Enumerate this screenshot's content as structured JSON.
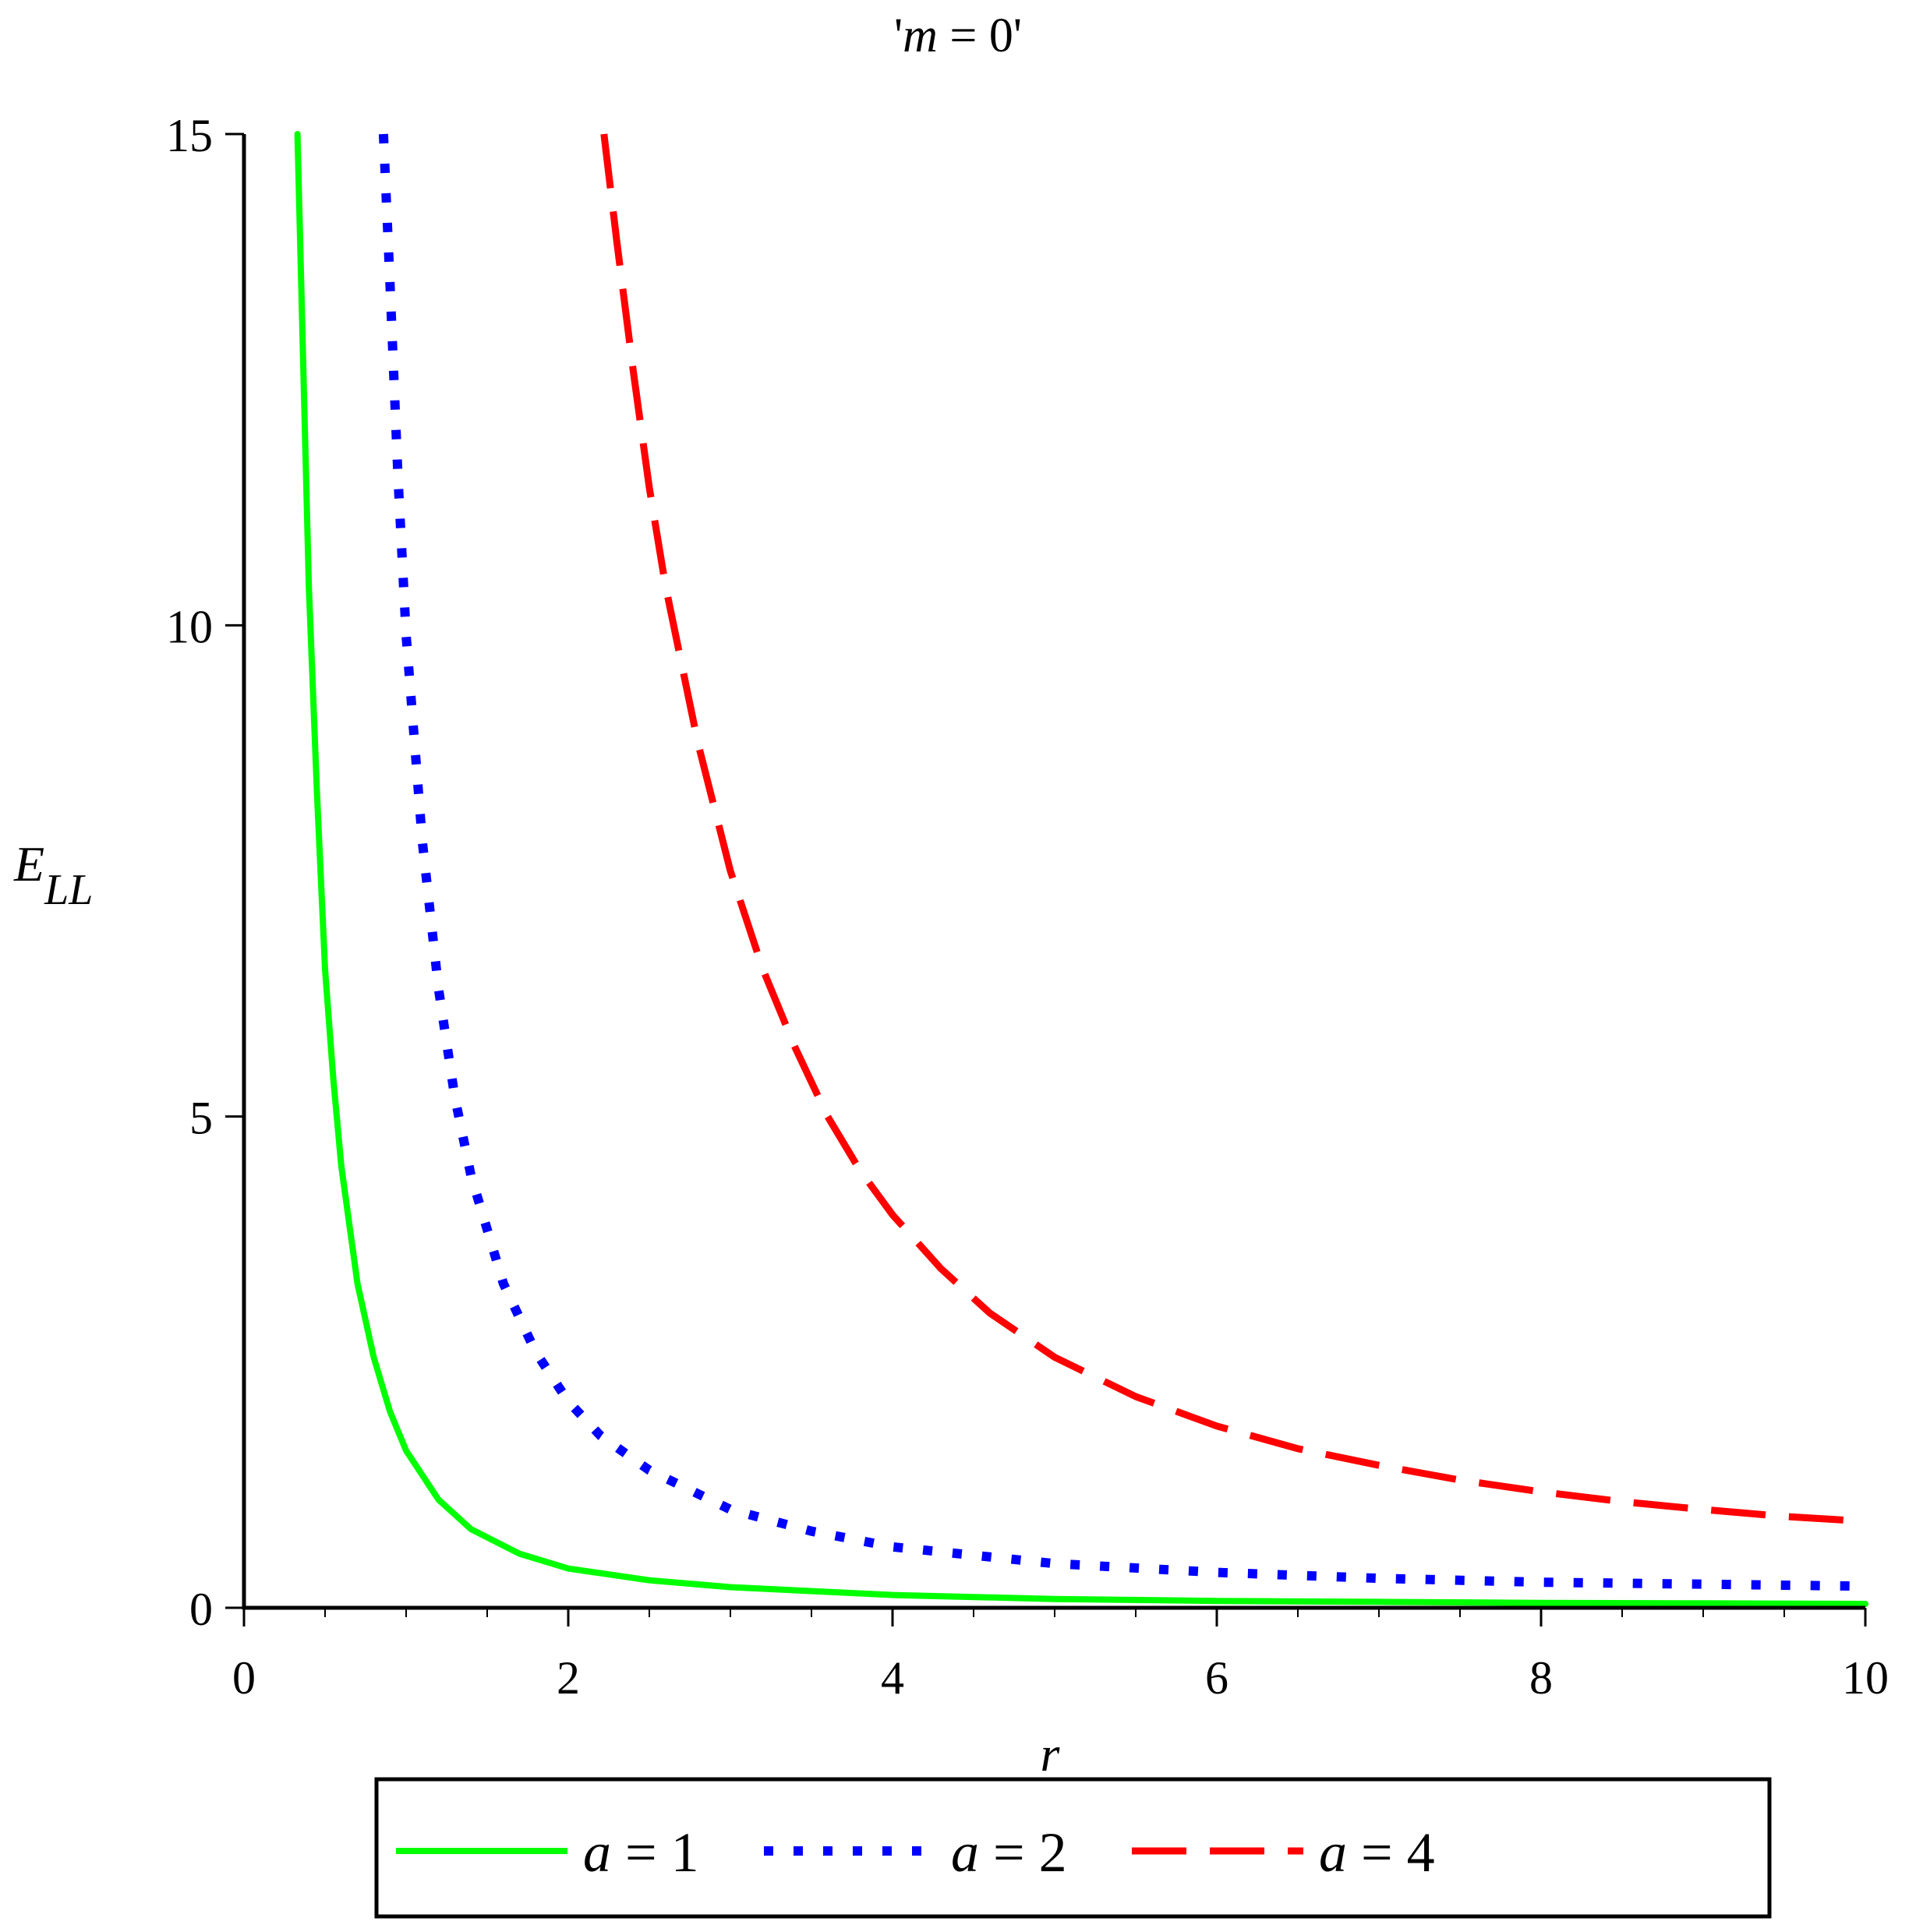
{
  "chart_data": {
    "type": "line",
    "title": "'m = 0'",
    "title_parts": {
      "open_quote": "'",
      "var": "m",
      "eq": " = 0",
      "close_quote": "'"
    },
    "xlabel": "r",
    "ylabel": {
      "base": "E",
      "sub": "LL"
    },
    "xlim": [
      0,
      10
    ],
    "ylim": [
      0,
      15
    ],
    "xticks": [
      0,
      2,
      4,
      6,
      8,
      10
    ],
    "yticks": [
      0,
      5,
      10,
      15
    ],
    "xtick_labels": [
      "0",
      "2",
      "4",
      "6",
      "8",
      "10"
    ],
    "ytick_labels": [
      "0",
      "5",
      "10",
      "15"
    ],
    "grid": false,
    "legend_position": "bottom",
    "series": [
      {
        "name": "a = 1",
        "param": "a",
        "param_value": "1",
        "color": "#00ff00",
        "style": "solid",
        "points": [
          [
            0.33,
            15.0
          ],
          [
            0.36,
            13.0
          ],
          [
            0.4,
            10.4
          ],
          [
            0.45,
            8.3
          ],
          [
            0.5,
            6.5
          ],
          [
            0.55,
            5.4
          ],
          [
            0.6,
            4.5
          ],
          [
            0.7,
            3.3
          ],
          [
            0.8,
            2.55
          ],
          [
            0.9,
            2.0
          ],
          [
            1.0,
            1.6
          ],
          [
            1.2,
            1.1
          ],
          [
            1.4,
            0.8
          ],
          [
            1.7,
            0.55
          ],
          [
            2.0,
            0.4
          ],
          [
            2.5,
            0.28
          ],
          [
            3.0,
            0.21
          ],
          [
            4.0,
            0.13
          ],
          [
            5.0,
            0.09
          ],
          [
            6.0,
            0.07
          ],
          [
            7.0,
            0.06
          ],
          [
            8.0,
            0.05
          ],
          [
            9.0,
            0.045
          ],
          [
            10.0,
            0.04
          ]
        ]
      },
      {
        "name": "a = 2",
        "param": "a",
        "param_value": "2",
        "color": "#0000ff",
        "style": "dotted",
        "points": [
          [
            0.86,
            15.0
          ],
          [
            0.9,
            13.5
          ],
          [
            0.95,
            11.5
          ],
          [
            1.0,
            9.9
          ],
          [
            1.1,
            7.8
          ],
          [
            1.2,
            6.3
          ],
          [
            1.3,
            5.2
          ],
          [
            1.4,
            4.4
          ],
          [
            1.6,
            3.3
          ],
          [
            1.8,
            2.6
          ],
          [
            2.0,
            2.1
          ],
          [
            2.2,
            1.75
          ],
          [
            2.5,
            1.4
          ],
          [
            3.0,
            1.0
          ],
          [
            3.5,
            0.78
          ],
          [
            4.0,
            0.62
          ],
          [
            5.0,
            0.45
          ],
          [
            6.0,
            0.36
          ],
          [
            7.0,
            0.3
          ],
          [
            8.0,
            0.26
          ],
          [
            9.0,
            0.24
          ],
          [
            10.0,
            0.22
          ]
        ]
      },
      {
        "name": "a = 4",
        "param": "a",
        "param_value": "4",
        "color": "#ff0000",
        "style": "dashed",
        "points": [
          [
            2.22,
            15.0
          ],
          [
            2.3,
            13.9
          ],
          [
            2.4,
            12.6
          ],
          [
            2.5,
            11.4
          ],
          [
            2.6,
            10.4
          ],
          [
            2.8,
            8.8
          ],
          [
            3.0,
            7.5
          ],
          [
            3.2,
            6.5
          ],
          [
            3.4,
            5.7
          ],
          [
            3.6,
            5.0
          ],
          [
            3.8,
            4.45
          ],
          [
            4.0,
            4.0
          ],
          [
            4.3,
            3.45
          ],
          [
            4.6,
            3.0
          ],
          [
            5.0,
            2.55
          ],
          [
            5.5,
            2.15
          ],
          [
            6.0,
            1.85
          ],
          [
            6.5,
            1.62
          ],
          [
            7.0,
            1.45
          ],
          [
            7.5,
            1.3
          ],
          [
            8.0,
            1.18
          ],
          [
            8.5,
            1.08
          ],
          [
            9.0,
            1.0
          ],
          [
            9.5,
            0.93
          ],
          [
            10.0,
            0.88
          ]
        ]
      }
    ]
  }
}
